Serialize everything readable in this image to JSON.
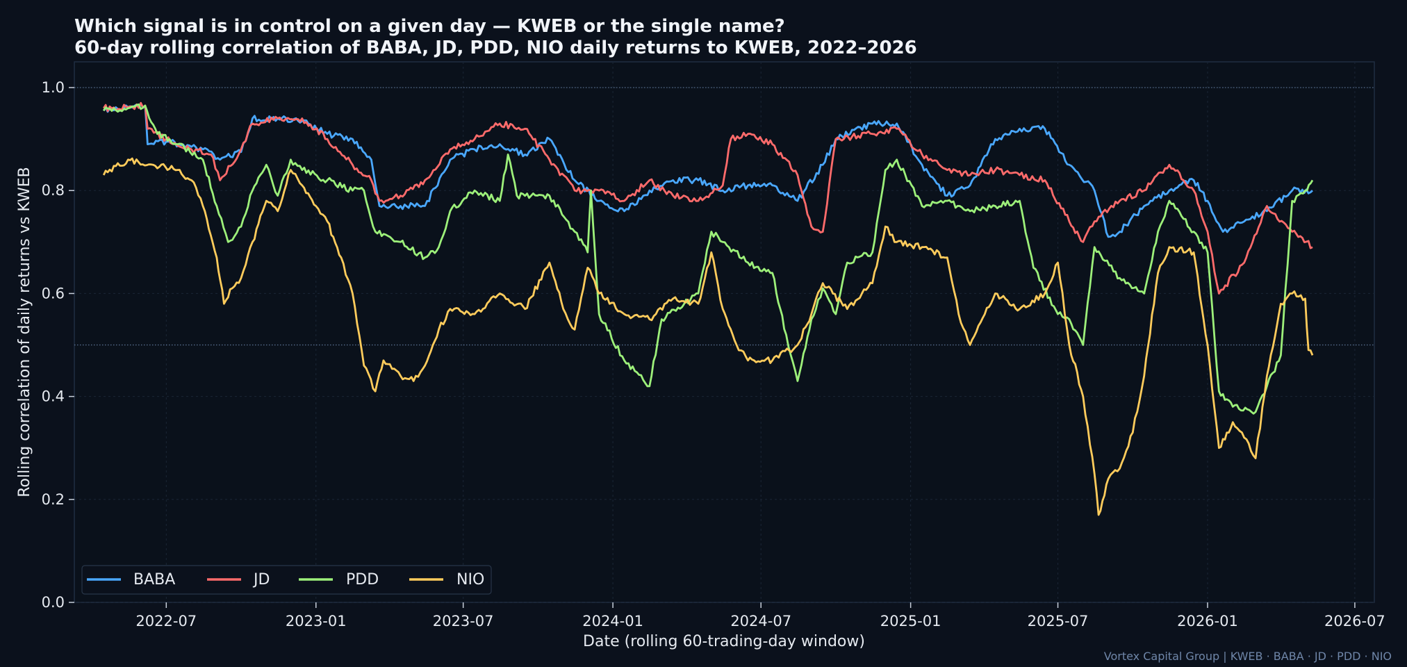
{
  "chart_data": {
    "type": "line",
    "title": "Which signal is in control on a given day — KWEB or the single name?",
    "subtitle": "60-day rolling correlation of BABA, JD, PDD, NIO daily returns to KWEB, 2022–2026",
    "xlabel": "Date  (rolling 60-trading-day window)",
    "ylabel": "Rolling correlation of daily returns vs KWEB",
    "xlim": [
      "2022-03-10",
      "2026-07-25"
    ],
    "ylim": [
      0.0,
      1.05
    ],
    "x_ticks": [
      "2022-07",
      "2023-01",
      "2023-07",
      "2024-01",
      "2024-07",
      "2025-01",
      "2025-07",
      "2026-01",
      "2026-07"
    ],
    "x_tick_dates": [
      "2022-07-01",
      "2023-01-01",
      "2023-07-01",
      "2024-01-01",
      "2024-07-01",
      "2025-01-01",
      "2025-07-01",
      "2026-01-01",
      "2026-07-01"
    ],
    "y_ticks": [
      "0.0",
      "0.2",
      "0.4",
      "0.6",
      "0.8",
      "1.0"
    ],
    "y_tick_values": [
      0.0,
      0.2,
      0.4,
      0.6,
      0.8,
      1.0
    ],
    "reference_lines": [
      1.0,
      0.5
    ],
    "grid": true,
    "legend_position": "bottom-left",
    "series": [
      {
        "name": "BABA",
        "color": "#4aa8ff",
        "points": [
          [
            "2022-04-15",
            0.955
          ],
          [
            "2022-05-15",
            0.962
          ],
          [
            "2022-06-05",
            0.964
          ],
          [
            "2022-06-08",
            0.89
          ],
          [
            "2022-07-01",
            0.895
          ],
          [
            "2022-08-01",
            0.885
          ],
          [
            "2022-08-15",
            0.88
          ],
          [
            "2022-09-05",
            0.86
          ],
          [
            "2022-10-01",
            0.875
          ],
          [
            "2022-10-15",
            0.94
          ],
          [
            "2022-11-15",
            0.94
          ],
          [
            "2022-12-15",
            0.935
          ],
          [
            "2023-01-15",
            0.91
          ],
          [
            "2023-02-15",
            0.9
          ],
          [
            "2023-03-10",
            0.86
          ],
          [
            "2023-03-20",
            0.77
          ],
          [
            "2023-04-15",
            0.77
          ],
          [
            "2023-05-15",
            0.77
          ],
          [
            "2023-06-15",
            0.86
          ],
          [
            "2023-07-15",
            0.88
          ],
          [
            "2023-08-15",
            0.89
          ],
          [
            "2023-09-15",
            0.87
          ],
          [
            "2023-10-15",
            0.9
          ],
          [
            "2023-11-15",
            0.82
          ],
          [
            "2023-12-15",
            0.78
          ],
          [
            "2024-01-15",
            0.76
          ],
          [
            "2024-02-15",
            0.8
          ],
          [
            "2024-03-15",
            0.82
          ],
          [
            "2024-04-15",
            0.82
          ],
          [
            "2024-05-15",
            0.8
          ],
          [
            "2024-06-15",
            0.81
          ],
          [
            "2024-07-15",
            0.81
          ],
          [
            "2024-08-15",
            0.78
          ],
          [
            "2024-09-15",
            0.85
          ],
          [
            "2024-10-01",
            0.9
          ],
          [
            "2024-11-15",
            0.93
          ],
          [
            "2024-12-15",
            0.93
          ],
          [
            "2025-01-15",
            0.85
          ],
          [
            "2025-02-15",
            0.79
          ],
          [
            "2025-03-15",
            0.81
          ],
          [
            "2025-04-15",
            0.9
          ],
          [
            "2025-05-15",
            0.92
          ],
          [
            "2025-06-15",
            0.92
          ],
          [
            "2025-07-15",
            0.85
          ],
          [
            "2025-08-15",
            0.8
          ],
          [
            "2025-09-01",
            0.71
          ],
          [
            "2025-09-15",
            0.72
          ],
          [
            "2025-10-15",
            0.77
          ],
          [
            "2025-11-15",
            0.8
          ],
          [
            "2025-12-15",
            0.82
          ],
          [
            "2026-01-01",
            0.78
          ],
          [
            "2026-01-20",
            0.72
          ],
          [
            "2026-02-15",
            0.74
          ],
          [
            "2026-03-15",
            0.76
          ],
          [
            "2026-04-15",
            0.8
          ],
          [
            "2026-05-10",
            0.8
          ]
        ]
      },
      {
        "name": "JD",
        "color": "#ff6b6b",
        "points": [
          [
            "2022-04-15",
            0.96
          ],
          [
            "2022-05-15",
            0.962
          ],
          [
            "2022-06-05",
            0.965
          ],
          [
            "2022-06-08",
            0.92
          ],
          [
            "2022-07-01",
            0.9
          ],
          [
            "2022-08-01",
            0.88
          ],
          [
            "2022-08-25",
            0.87
          ],
          [
            "2022-09-05",
            0.82
          ],
          [
            "2022-10-01",
            0.88
          ],
          [
            "2022-10-15",
            0.93
          ],
          [
            "2022-11-15",
            0.94
          ],
          [
            "2022-12-15",
            0.94
          ],
          [
            "2023-01-15",
            0.9
          ],
          [
            "2023-02-15",
            0.85
          ],
          [
            "2023-03-10",
            0.82
          ],
          [
            "2023-03-20",
            0.78
          ],
          [
            "2023-04-15",
            0.79
          ],
          [
            "2023-05-15",
            0.82
          ],
          [
            "2023-06-15",
            0.88
          ],
          [
            "2023-07-15",
            0.9
          ],
          [
            "2023-08-15",
            0.93
          ],
          [
            "2023-09-15",
            0.92
          ],
          [
            "2023-10-15",
            0.86
          ],
          [
            "2023-11-15",
            0.8
          ],
          [
            "2023-12-15",
            0.8
          ],
          [
            "2024-01-15",
            0.78
          ],
          [
            "2024-02-15",
            0.82
          ],
          [
            "2024-03-15",
            0.79
          ],
          [
            "2024-04-15",
            0.78
          ],
          [
            "2024-05-15",
            0.81
          ],
          [
            "2024-05-25",
            0.9
          ],
          [
            "2024-06-15",
            0.91
          ],
          [
            "2024-07-15",
            0.89
          ],
          [
            "2024-08-15",
            0.83
          ],
          [
            "2024-09-01",
            0.73
          ],
          [
            "2024-09-15",
            0.72
          ],
          [
            "2024-10-01",
            0.9
          ],
          [
            "2024-11-15",
            0.91
          ],
          [
            "2024-12-15",
            0.92
          ],
          [
            "2025-01-15",
            0.87
          ],
          [
            "2025-02-15",
            0.84
          ],
          [
            "2025-03-15",
            0.83
          ],
          [
            "2025-04-15",
            0.84
          ],
          [
            "2025-05-15",
            0.83
          ],
          [
            "2025-06-15",
            0.82
          ],
          [
            "2025-07-15",
            0.74
          ],
          [
            "2025-08-01",
            0.7
          ],
          [
            "2025-08-15",
            0.74
          ],
          [
            "2025-09-15",
            0.78
          ],
          [
            "2025-10-15",
            0.8
          ],
          [
            "2025-11-15",
            0.85
          ],
          [
            "2025-12-15",
            0.8
          ],
          [
            "2026-01-01",
            0.72
          ],
          [
            "2026-01-15",
            0.6
          ],
          [
            "2026-02-15",
            0.66
          ],
          [
            "2026-03-15",
            0.77
          ],
          [
            "2026-04-15",
            0.72
          ],
          [
            "2026-05-10",
            0.69
          ]
        ]
      },
      {
        "name": "PDD",
        "color": "#9df07a",
        "points": [
          [
            "2022-04-15",
            0.955
          ],
          [
            "2022-05-15",
            0.96
          ],
          [
            "2022-06-05",
            0.965
          ],
          [
            "2022-06-20",
            0.91
          ],
          [
            "2022-07-15",
            0.89
          ],
          [
            "2022-08-15",
            0.86
          ],
          [
            "2022-09-01",
            0.77
          ],
          [
            "2022-09-15",
            0.7
          ],
          [
            "2022-10-01",
            0.73
          ],
          [
            "2022-10-15",
            0.8
          ],
          [
            "2022-11-01",
            0.85
          ],
          [
            "2022-11-15",
            0.79
          ],
          [
            "2022-12-01",
            0.86
          ],
          [
            "2022-12-15",
            0.84
          ],
          [
            "2023-01-15",
            0.82
          ],
          [
            "2023-02-15",
            0.8
          ],
          [
            "2023-03-01",
            0.8
          ],
          [
            "2023-03-15",
            0.72
          ],
          [
            "2023-04-15",
            0.7
          ],
          [
            "2023-05-15",
            0.67
          ],
          [
            "2023-06-01",
            0.69
          ],
          [
            "2023-06-15",
            0.76
          ],
          [
            "2023-07-15",
            0.8
          ],
          [
            "2023-08-15",
            0.78
          ],
          [
            "2023-08-25",
            0.87
          ],
          [
            "2023-09-05",
            0.79
          ],
          [
            "2023-10-15",
            0.79
          ],
          [
            "2023-11-15",
            0.72
          ],
          [
            "2023-12-01",
            0.68
          ],
          [
            "2023-12-05",
            0.8
          ],
          [
            "2023-12-15",
            0.56
          ],
          [
            "2024-01-15",
            0.47
          ],
          [
            "2024-02-15",
            0.42
          ],
          [
            "2024-03-01",
            0.55
          ],
          [
            "2024-04-15",
            0.6
          ],
          [
            "2024-05-01",
            0.72
          ],
          [
            "2024-05-15",
            0.7
          ],
          [
            "2024-06-15",
            0.66
          ],
          [
            "2024-07-15",
            0.64
          ],
          [
            "2024-08-01",
            0.52
          ],
          [
            "2024-08-15",
            0.43
          ],
          [
            "2024-09-01",
            0.55
          ],
          [
            "2024-09-15",
            0.61
          ],
          [
            "2024-10-01",
            0.56
          ],
          [
            "2024-10-15",
            0.66
          ],
          [
            "2024-11-15",
            0.68
          ],
          [
            "2024-12-01",
            0.84
          ],
          [
            "2024-12-15",
            0.86
          ],
          [
            "2025-01-15",
            0.77
          ],
          [
            "2025-02-15",
            0.78
          ],
          [
            "2025-03-15",
            0.76
          ],
          [
            "2025-04-15",
            0.77
          ],
          [
            "2025-05-15",
            0.78
          ],
          [
            "2025-06-01",
            0.65
          ],
          [
            "2025-07-01",
            0.56
          ],
          [
            "2025-07-15",
            0.55
          ],
          [
            "2025-08-01",
            0.5
          ],
          [
            "2025-08-15",
            0.69
          ],
          [
            "2025-09-15",
            0.63
          ],
          [
            "2025-10-15",
            0.6
          ],
          [
            "2025-11-01",
            0.72
          ],
          [
            "2025-11-15",
            0.78
          ],
          [
            "2025-12-15",
            0.72
          ],
          [
            "2026-01-01",
            0.68
          ],
          [
            "2026-01-15",
            0.41
          ],
          [
            "2026-02-01",
            0.38
          ],
          [
            "2026-03-01",
            0.37
          ],
          [
            "2026-03-15",
            0.42
          ],
          [
            "2026-04-01",
            0.48
          ],
          [
            "2026-04-15",
            0.78
          ],
          [
            "2026-05-01",
            0.8
          ],
          [
            "2026-05-10",
            0.82
          ]
        ]
      },
      {
        "name": "NIO",
        "color": "#ffcc5c",
        "points": [
          [
            "2022-04-15",
            0.83
          ],
          [
            "2022-05-15",
            0.86
          ],
          [
            "2022-06-15",
            0.85
          ],
          [
            "2022-07-15",
            0.84
          ],
          [
            "2022-08-01",
            0.82
          ],
          [
            "2022-08-15",
            0.77
          ],
          [
            "2022-09-01",
            0.67
          ],
          [
            "2022-09-10",
            0.58
          ],
          [
            "2022-09-20",
            0.61
          ],
          [
            "2022-10-01",
            0.63
          ],
          [
            "2022-10-15",
            0.7
          ],
          [
            "2022-11-01",
            0.78
          ],
          [
            "2022-11-15",
            0.76
          ],
          [
            "2022-12-01",
            0.84
          ],
          [
            "2022-12-15",
            0.81
          ],
          [
            "2023-01-01",
            0.77
          ],
          [
            "2023-01-15",
            0.74
          ],
          [
            "2023-02-01",
            0.67
          ],
          [
            "2023-02-15",
            0.6
          ],
          [
            "2023-03-01",
            0.46
          ],
          [
            "2023-03-15",
            0.41
          ],
          [
            "2023-03-25",
            0.47
          ],
          [
            "2023-04-15",
            0.44
          ],
          [
            "2023-05-01",
            0.43
          ],
          [
            "2023-05-15",
            0.46
          ],
          [
            "2023-06-01",
            0.53
          ],
          [
            "2023-06-15",
            0.57
          ],
          [
            "2023-07-15",
            0.56
          ],
          [
            "2023-08-15",
            0.6
          ],
          [
            "2023-09-15",
            0.57
          ],
          [
            "2023-10-15",
            0.66
          ],
          [
            "2023-11-01",
            0.57
          ],
          [
            "2023-11-15",
            0.53
          ],
          [
            "2023-12-01",
            0.65
          ],
          [
            "2023-12-15",
            0.6
          ],
          [
            "2024-01-15",
            0.56
          ],
          [
            "2024-02-15",
            0.55
          ],
          [
            "2024-03-15",
            0.59
          ],
          [
            "2024-04-15",
            0.58
          ],
          [
            "2024-05-01",
            0.68
          ],
          [
            "2024-05-15",
            0.57
          ],
          [
            "2024-06-01",
            0.5
          ],
          [
            "2024-06-15",
            0.47
          ],
          [
            "2024-07-15",
            0.47
          ],
          [
            "2024-08-15",
            0.5
          ],
          [
            "2024-09-01",
            0.56
          ],
          [
            "2024-09-15",
            0.62
          ],
          [
            "2024-10-15",
            0.57
          ],
          [
            "2024-11-15",
            0.62
          ],
          [
            "2024-12-01",
            0.73
          ],
          [
            "2024-12-15",
            0.7
          ],
          [
            "2025-01-15",
            0.69
          ],
          [
            "2025-02-15",
            0.67
          ],
          [
            "2025-03-01",
            0.56
          ],
          [
            "2025-03-15",
            0.5
          ],
          [
            "2025-04-15",
            0.6
          ],
          [
            "2025-05-15",
            0.57
          ],
          [
            "2025-06-15",
            0.6
          ],
          [
            "2025-07-01",
            0.66
          ],
          [
            "2025-07-15",
            0.5
          ],
          [
            "2025-08-01",
            0.4
          ],
          [
            "2025-08-15",
            0.25
          ],
          [
            "2025-08-20",
            0.17
          ],
          [
            "2025-09-01",
            0.24
          ],
          [
            "2025-09-15",
            0.26
          ],
          [
            "2025-10-01",
            0.33
          ],
          [
            "2025-10-15",
            0.44
          ],
          [
            "2025-11-01",
            0.64
          ],
          [
            "2025-11-15",
            0.69
          ],
          [
            "2025-12-15",
            0.68
          ],
          [
            "2026-01-01",
            0.5
          ],
          [
            "2026-01-15",
            0.3
          ],
          [
            "2026-02-01",
            0.35
          ],
          [
            "2026-02-15",
            0.32
          ],
          [
            "2026-03-01",
            0.28
          ],
          [
            "2026-03-15",
            0.44
          ],
          [
            "2026-04-01",
            0.58
          ],
          [
            "2026-04-15",
            0.6
          ],
          [
            "2026-05-01",
            0.59
          ],
          [
            "2026-05-05",
            0.49
          ],
          [
            "2026-05-10",
            0.48
          ]
        ]
      }
    ]
  },
  "footer": "Vortex Capital Group  |  KWEB · BABA · JD · PDD · NIO"
}
